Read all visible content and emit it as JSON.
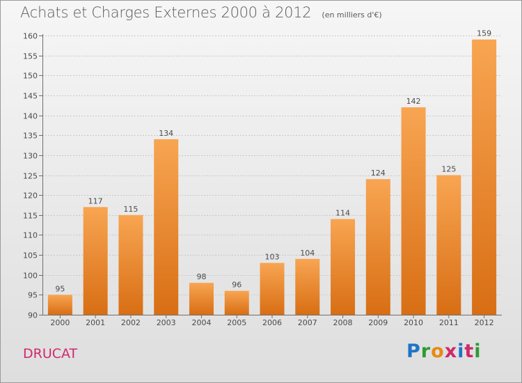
{
  "title": "Achats et Charges Externes 2000 à 2012",
  "unit_note": "(en milliers d'€)",
  "commune": "DRUCAT",
  "logo": {
    "text": "Proxiti",
    "letter_colors": [
      "#1f74c5",
      "#2f9a33",
      "#e88a12",
      "#d0286a",
      "#1f74c5",
      "#d0286a",
      "#2f9a33"
    ]
  },
  "colors": {
    "bar_light": "#f8a552",
    "bar_dark": "#d86e14",
    "axis": "#6d6d6d",
    "grid": "#c8c8c8",
    "text": "#4a4a4a"
  },
  "chart_data": {
    "type": "bar",
    "categories": [
      "2000",
      "2001",
      "2002",
      "2003",
      "2004",
      "2005",
      "2006",
      "2007",
      "2008",
      "2009",
      "2010",
      "2011",
      "2012"
    ],
    "values": [
      95,
      117,
      115,
      134,
      98,
      96,
      103,
      104,
      114,
      124,
      142,
      125,
      159
    ],
    "ylim": [
      90,
      160
    ],
    "yticks": [
      90,
      95,
      100,
      105,
      110,
      115,
      120,
      125,
      130,
      135,
      140,
      145,
      150,
      155,
      160
    ],
    "grid": true,
    "title": "Achats et Charges Externes 2000 à 2012",
    "xlabel": "",
    "ylabel": ""
  }
}
